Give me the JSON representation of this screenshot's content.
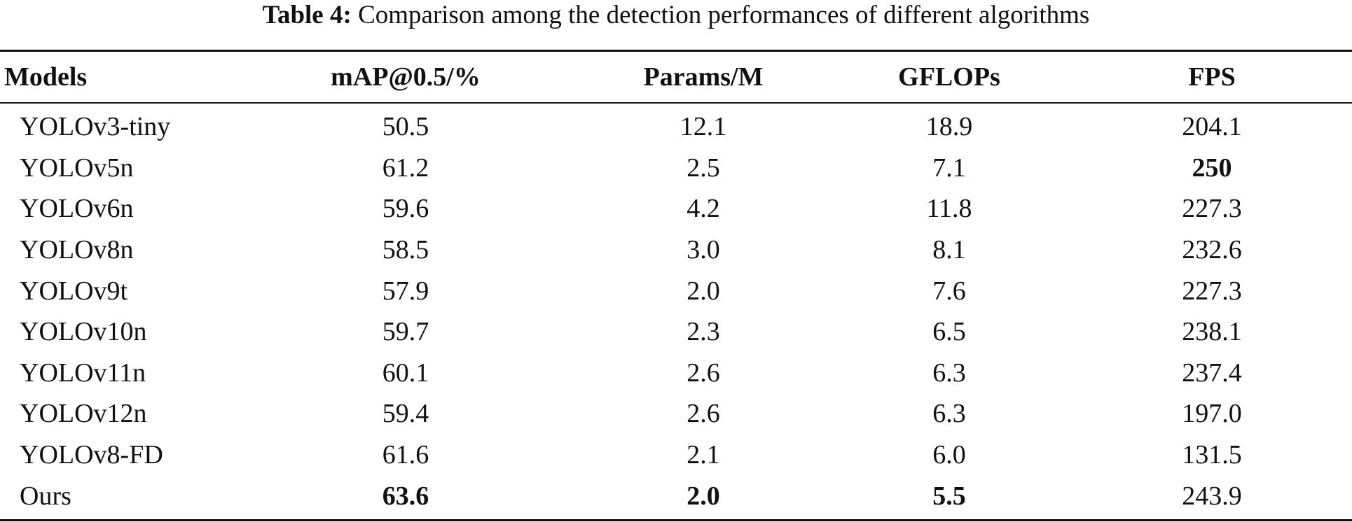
{
  "caption": {
    "label": "Table 4:",
    "text": " Comparison among the detection performances of different algorithms"
  },
  "table": {
    "headers": [
      "Models",
      "mAP@0.5/%",
      "Params/M",
      "GFLOPs",
      "FPS"
    ],
    "rows": [
      {
        "model": "YOLOv3-tiny",
        "map": "50.5",
        "params": "12.1",
        "gflops": "18.9",
        "fps": "204.1"
      },
      {
        "model": "YOLOv5n",
        "map": "61.2",
        "params": "2.5",
        "gflops": "7.1",
        "fps": "250"
      },
      {
        "model": "YOLOv6n",
        "map": "59.6",
        "params": "4.2",
        "gflops": "11.8",
        "fps": "227.3"
      },
      {
        "model": "YOLOv8n",
        "map": "58.5",
        "params": "3.0",
        "gflops": "8.1",
        "fps": "232.6"
      },
      {
        "model": "YOLOv9t",
        "map": "57.9",
        "params": "2.0",
        "gflops": "7.6",
        "fps": "227.3"
      },
      {
        "model": "YOLOv10n",
        "map": "59.7",
        "params": "2.3",
        "gflops": "6.5",
        "fps": "238.1"
      },
      {
        "model": "YOLOv11n",
        "map": "60.1",
        "params": "2.6",
        "gflops": "6.3",
        "fps": "237.4"
      },
      {
        "model": "YOLOv12n",
        "map": "59.4",
        "params": "2.6",
        "gflops": "6.3",
        "fps": "197.0"
      },
      {
        "model": "YOLOv8-FD",
        "map": "61.6",
        "params": "2.1",
        "gflops": "6.0",
        "fps": "131.5"
      },
      {
        "model": "Ours",
        "map": "63.6",
        "params": "2.0",
        "gflops": "5.5",
        "fps": "243.9"
      }
    ]
  }
}
